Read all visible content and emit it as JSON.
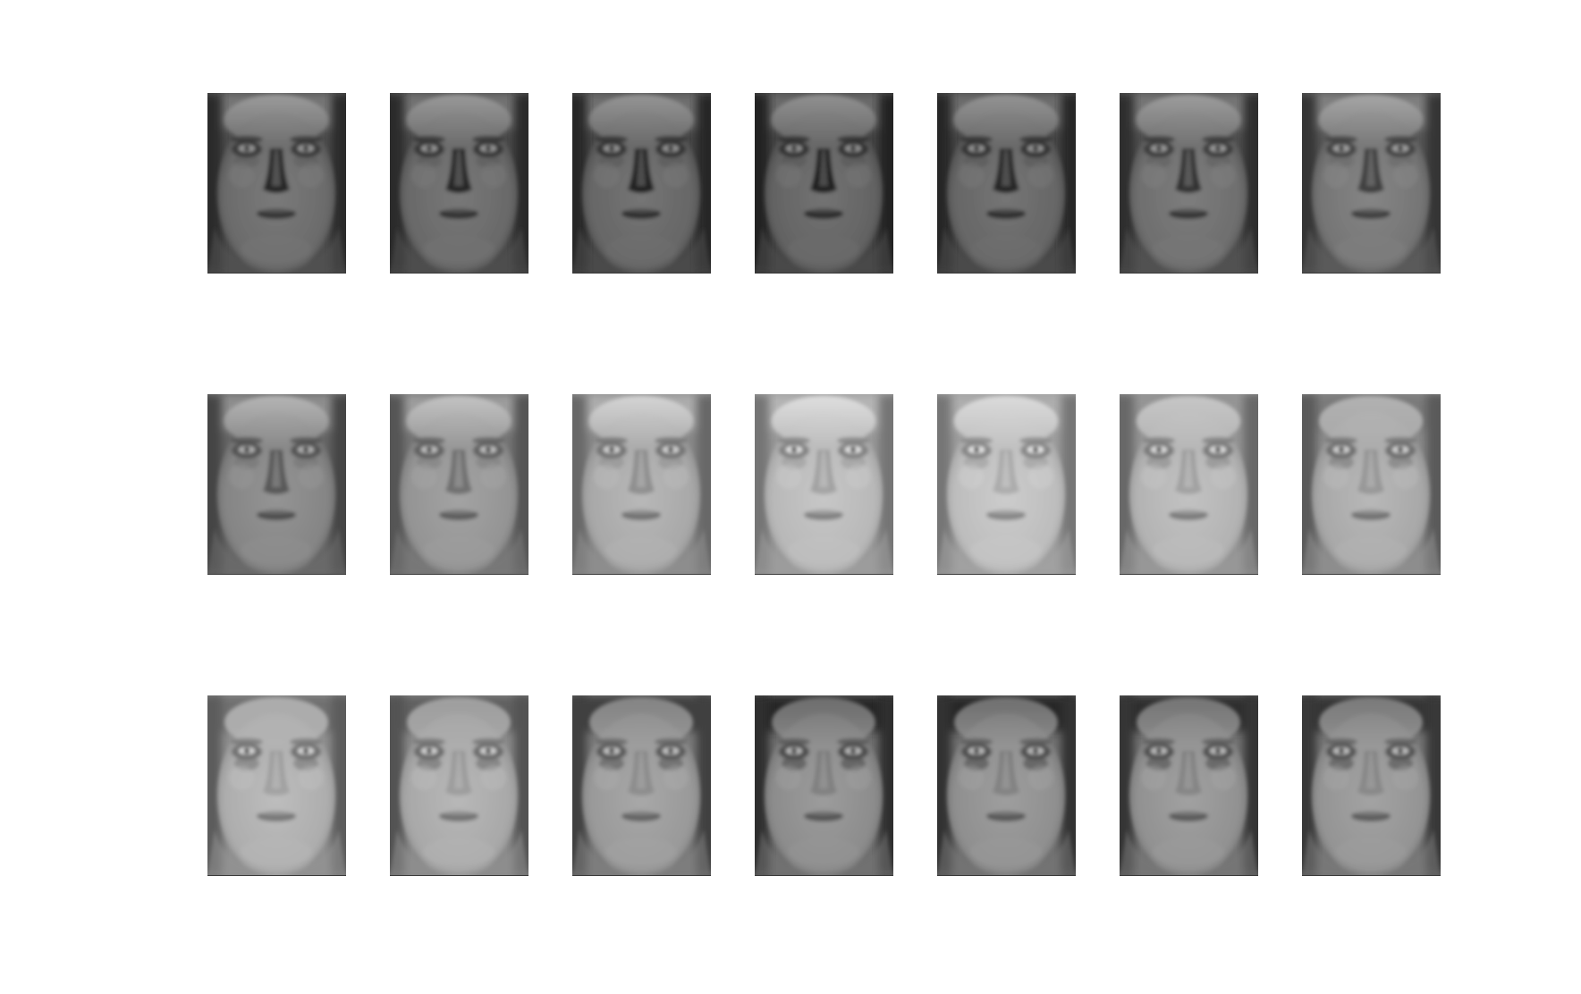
{
  "figure": {
    "layout": {
      "rows": 3,
      "columns": 7
    },
    "images": [
      {
        "row": 1,
        "col": 1,
        "tone": 0.42,
        "hair": 0.15,
        "eyeDetail": 0.2,
        "noseDark": 0.85
      },
      {
        "row": 1,
        "col": 2,
        "tone": 0.41,
        "hair": 0.15,
        "eyeDetail": 0.2,
        "noseDark": 0.85
      },
      {
        "row": 1,
        "col": 3,
        "tone": 0.4,
        "hair": 0.16,
        "eyeDetail": 0.2,
        "noseDark": 0.85
      },
      {
        "row": 1,
        "col": 4,
        "tone": 0.39,
        "hair": 0.17,
        "eyeDetail": 0.2,
        "noseDark": 0.85
      },
      {
        "row": 1,
        "col": 5,
        "tone": 0.4,
        "hair": 0.17,
        "eyeDetail": 0.2,
        "noseDark": 0.8
      },
      {
        "row": 1,
        "col": 6,
        "tone": 0.43,
        "hair": 0.16,
        "eyeDetail": 0.2,
        "noseDark": 0.75
      },
      {
        "row": 1,
        "col": 7,
        "tone": 0.46,
        "hair": 0.15,
        "eyeDetail": 0.2,
        "noseDark": 0.7
      },
      {
        "row": 2,
        "col": 1,
        "tone": 0.52,
        "hair": 0.15,
        "eyeDetail": 0.25,
        "noseDark": 0.6
      },
      {
        "row": 2,
        "col": 2,
        "tone": 0.58,
        "hair": 0.16,
        "eyeDetail": 0.3,
        "noseDark": 0.5
      },
      {
        "row": 2,
        "col": 3,
        "tone": 0.66,
        "hair": 0.18,
        "eyeDetail": 0.35,
        "noseDark": 0.4
      },
      {
        "row": 2,
        "col": 4,
        "tone": 0.72,
        "hair": 0.22,
        "eyeDetail": 0.4,
        "noseDark": 0.35
      },
      {
        "row": 2,
        "col": 5,
        "tone": 0.74,
        "hair": 0.28,
        "eyeDetail": 0.45,
        "noseDark": 0.3
      },
      {
        "row": 2,
        "col": 6,
        "tone": 0.7,
        "hair": 0.36,
        "eyeDetail": 0.55,
        "noseDark": 0.3
      },
      {
        "row": 2,
        "col": 7,
        "tone": 0.66,
        "hair": 0.44,
        "eyeDetail": 0.65,
        "noseDark": 0.3
      },
      {
        "row": 3,
        "col": 1,
        "tone": 0.68,
        "hair": 0.52,
        "eyeDetail": 0.75,
        "noseDark": 0.25
      },
      {
        "row": 3,
        "col": 2,
        "tone": 0.66,
        "hair": 0.58,
        "eyeDetail": 0.8,
        "noseDark": 0.25
      },
      {
        "row": 3,
        "col": 3,
        "tone": 0.6,
        "hair": 0.66,
        "eyeDetail": 0.85,
        "noseDark": 0.25
      },
      {
        "row": 3,
        "col": 4,
        "tone": 0.55,
        "hair": 0.74,
        "eyeDetail": 0.9,
        "noseDark": 0.25
      },
      {
        "row": 3,
        "col": 5,
        "tone": 0.56,
        "hair": 0.74,
        "eyeDetail": 0.9,
        "noseDark": 0.25
      },
      {
        "row": 3,
        "col": 6,
        "tone": 0.57,
        "hair": 0.72,
        "eyeDetail": 0.9,
        "noseDark": 0.25
      },
      {
        "row": 3,
        "col": 7,
        "tone": 0.58,
        "hair": 0.7,
        "eyeDetail": 0.9,
        "noseDark": 0.25
      }
    ]
  }
}
